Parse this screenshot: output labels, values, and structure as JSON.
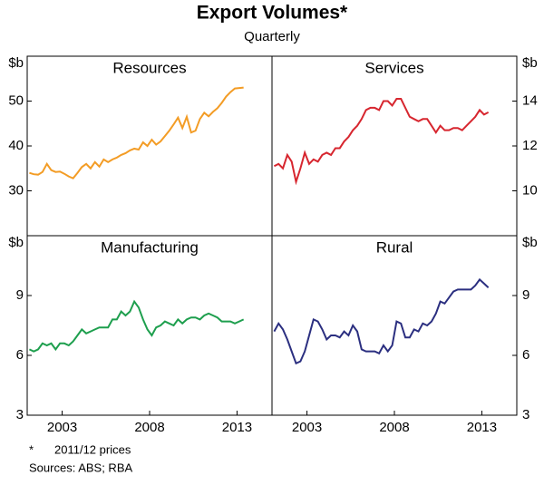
{
  "title": "Export Volumes*",
  "subtitle": "Quarterly",
  "footnote": {
    "marker": "*",
    "text": "2011/12 prices"
  },
  "sources": "Sources: ABS; RBA",
  "chart_data": [
    {
      "type": "line",
      "title": "Resources",
      "y_axis_label": "$b",
      "y_axis_side": "left",
      "color": "#f39c25",
      "x": [
        2001.125,
        2001.375,
        2001.625,
        2001.875,
        2002.125,
        2002.375,
        2002.625,
        2002.875,
        2003.125,
        2003.375,
        2003.625,
        2003.875,
        2004.125,
        2004.375,
        2004.625,
        2004.875,
        2005.125,
        2005.375,
        2005.625,
        2005.875,
        2006.125,
        2006.375,
        2006.625,
        2006.875,
        2007.125,
        2007.375,
        2007.625,
        2007.875,
        2008.125,
        2008.375,
        2008.625,
        2008.875,
        2009.125,
        2009.375,
        2009.625,
        2009.875,
        2010.125,
        2010.375,
        2010.625,
        2010.875,
        2011.125,
        2011.375,
        2011.625,
        2011.875,
        2012.125,
        2012.375,
        2012.625,
        2012.875,
        2013.125,
        2013.375
      ],
      "values": [
        34,
        33.7,
        33.6,
        34.2,
        36,
        34.6,
        34.2,
        34.3,
        33.8,
        33.2,
        32.8,
        34,
        35.3,
        36,
        35,
        36.4,
        35.4,
        37,
        36.4,
        37,
        37.4,
        38,
        38.4,
        39,
        39.4,
        39.2,
        40.8,
        40,
        41.4,
        40.3,
        41,
        42.2,
        43.4,
        44.8,
        46.3,
        44,
        46.5,
        43,
        43.4,
        46,
        47.4,
        46.6,
        47.6,
        48.4,
        49.6,
        51,
        52,
        52.8,
        52.9,
        53
      ],
      "xlim": [
        2001,
        2015
      ],
      "ylim": [
        20,
        60
      ],
      "yticks": [
        30,
        40,
        50
      ]
    },
    {
      "type": "line",
      "title": "Services",
      "y_axis_label": "$b",
      "y_axis_side": "right",
      "color": "#d7262f",
      "x": [
        2001.125,
        2001.375,
        2001.625,
        2001.875,
        2002.125,
        2002.375,
        2002.625,
        2002.875,
        2003.125,
        2003.375,
        2003.625,
        2003.875,
        2004.125,
        2004.375,
        2004.625,
        2004.875,
        2005.125,
        2005.375,
        2005.625,
        2005.875,
        2006.125,
        2006.375,
        2006.625,
        2006.875,
        2007.125,
        2007.375,
        2007.625,
        2007.875,
        2008.125,
        2008.375,
        2008.625,
        2008.875,
        2009.125,
        2009.375,
        2009.625,
        2009.875,
        2010.125,
        2010.375,
        2010.625,
        2010.875,
        2011.125,
        2011.375,
        2011.625,
        2011.875,
        2012.125,
        2012.375,
        2012.625,
        2012.875,
        2013.125,
        2013.375
      ],
      "values": [
        11.1,
        11.2,
        11,
        11.6,
        11.3,
        10.4,
        11,
        11.7,
        11.2,
        11.4,
        11.3,
        11.6,
        11.7,
        11.6,
        11.9,
        11.9,
        12.2,
        12.4,
        12.7,
        12.9,
        13.2,
        13.6,
        13.7,
        13.7,
        13.6,
        14,
        14,
        13.8,
        14.1,
        14.1,
        13.7,
        13.3,
        13.2,
        13.1,
        13.2,
        13.2,
        12.9,
        12.6,
        12.9,
        12.7,
        12.7,
        12.8,
        12.8,
        12.7,
        12.9,
        13.1,
        13.3,
        13.6,
        13.4,
        13.5
      ],
      "xlim": [
        2001,
        2015
      ],
      "ylim": [
        8,
        16
      ],
      "yticks": [
        10,
        12,
        14
      ]
    },
    {
      "type": "line",
      "title": "Manufacturing",
      "y_axis_label": "$b",
      "y_axis_side": "left",
      "color": "#1e9f4e",
      "x": [
        2001.125,
        2001.375,
        2001.625,
        2001.875,
        2002.125,
        2002.375,
        2002.625,
        2002.875,
        2003.125,
        2003.375,
        2003.625,
        2003.875,
        2004.125,
        2004.375,
        2004.625,
        2004.875,
        2005.125,
        2005.375,
        2005.625,
        2005.875,
        2006.125,
        2006.375,
        2006.625,
        2006.875,
        2007.125,
        2007.375,
        2007.625,
        2007.875,
        2008.125,
        2008.375,
        2008.625,
        2008.875,
        2009.125,
        2009.375,
        2009.625,
        2009.875,
        2010.125,
        2010.375,
        2010.625,
        2010.875,
        2011.125,
        2011.375,
        2011.625,
        2011.875,
        2012.125,
        2012.375,
        2012.625,
        2012.875,
        2013.125,
        2013.375
      ],
      "values": [
        6.3,
        6.2,
        6.3,
        6.6,
        6.5,
        6.6,
        6.3,
        6.6,
        6.6,
        6.5,
        6.7,
        7,
        7.3,
        7.1,
        7.2,
        7.3,
        7.4,
        7.4,
        7.4,
        7.8,
        7.8,
        8.2,
        8,
        8.2,
        8.7,
        8.4,
        7.8,
        7.3,
        7,
        7.4,
        7.5,
        7.7,
        7.6,
        7.5,
        7.8,
        7.6,
        7.8,
        7.9,
        7.9,
        7.8,
        8,
        8.1,
        8,
        7.9,
        7.7,
        7.7,
        7.7,
        7.6,
        7.7,
        7.8
      ],
      "xlim": [
        2001,
        2015
      ],
      "ylim": [
        3,
        12
      ],
      "yticks": [
        3,
        6,
        9
      ],
      "xticks": [
        2003,
        2008,
        2013
      ]
    },
    {
      "type": "line",
      "title": "Rural",
      "y_axis_label": "$b",
      "y_axis_side": "right",
      "color": "#2b2f80",
      "x": [
        2001.125,
        2001.375,
        2001.625,
        2001.875,
        2002.125,
        2002.375,
        2002.625,
        2002.875,
        2003.125,
        2003.375,
        2003.625,
        2003.875,
        2004.125,
        2004.375,
        2004.625,
        2004.875,
        2005.125,
        2005.375,
        2005.625,
        2005.875,
        2006.125,
        2006.375,
        2006.625,
        2006.875,
        2007.125,
        2007.375,
        2007.625,
        2007.875,
        2008.125,
        2008.375,
        2008.625,
        2008.875,
        2009.125,
        2009.375,
        2009.625,
        2009.875,
        2010.125,
        2010.375,
        2010.625,
        2010.875,
        2011.125,
        2011.375,
        2011.625,
        2011.875,
        2012.125,
        2012.375,
        2012.625,
        2012.875,
        2013.125,
        2013.375
      ],
      "values": [
        7.2,
        7.6,
        7.3,
        6.8,
        6.2,
        5.6,
        5.7,
        6.2,
        7,
        7.8,
        7.7,
        7.3,
        6.8,
        7,
        7,
        6.9,
        7.2,
        7,
        7.5,
        7.2,
        6.3,
        6.2,
        6.2,
        6.2,
        6.1,
        6.5,
        6.2,
        6.5,
        7.7,
        7.6,
        6.9,
        6.9,
        7.3,
        7.2,
        7.6,
        7.5,
        7.7,
        8.1,
        8.7,
        8.6,
        8.9,
        9.2,
        9.3,
        9.3,
        9.3,
        9.3,
        9.5,
        9.8,
        9.6,
        9.4
      ],
      "xlim": [
        2001,
        2015
      ],
      "ylim": [
        3,
        12
      ],
      "yticks": [
        3,
        6,
        9
      ],
      "xticks": [
        2003,
        2008,
        2013
      ]
    }
  ]
}
